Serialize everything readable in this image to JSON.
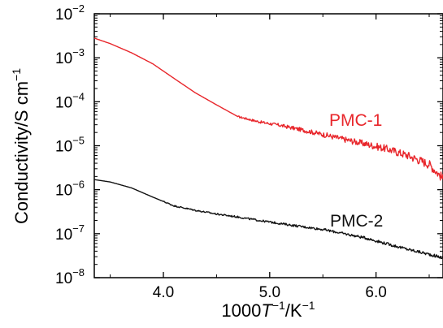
{
  "chart_data": {
    "type": "line",
    "xlabel": {
      "main": "1000",
      "italic": "T",
      "sup1": "−1",
      "rest": "/K",
      "sup2": "−1"
    },
    "ylabel": {
      "main": "Conductivity/S cm",
      "sup": "−1"
    },
    "xlim": [
      3.35,
      6.63
    ],
    "ylim_log10": [
      -8,
      -2
    ],
    "yscale": "log",
    "grid": false,
    "x_ticks": [
      4.0,
      5.0,
      6.0
    ],
    "x_tick_labels": [
      "4.0",
      "5.0",
      "6.0"
    ],
    "y_ticks_log10": [
      -2,
      -3,
      -4,
      -5,
      -6,
      -7,
      -8
    ],
    "y_tick_labels": [
      {
        "base": "10",
        "exp": "−2"
      },
      {
        "base": "10",
        "exp": "−3"
      },
      {
        "base": "10",
        "exp": "−4"
      },
      {
        "base": "10",
        "exp": "−5"
      },
      {
        "base": "10",
        "exp": "−6"
      },
      {
        "base": "10",
        "exp": "−7"
      },
      {
        "base": "10",
        "exp": "−8"
      }
    ],
    "series": [
      {
        "name": "PMC-1",
        "color": "#e8262b",
        "noisy_from_x": 4.7,
        "x": [
          3.35,
          3.5,
          3.7,
          3.9,
          4.1,
          4.3,
          4.5,
          4.7,
          4.9,
          5.1,
          5.3,
          5.5,
          5.7,
          5.9,
          6.1,
          6.3,
          6.5,
          6.63
        ],
        "y": [
          0.0028,
          0.0021,
          0.0013,
          0.00073,
          0.00034,
          0.00016,
          8.5e-05,
          4.6e-05,
          3.5e-05,
          2.9e-05,
          2.3e-05,
          1.8e-05,
          1.4e-05,
          1.1e-05,
          8.5e-06,
          6e-06,
          3.8e-06,
          1.8e-06
        ]
      },
      {
        "name": "PMC-2",
        "color": "#111111",
        "noisy_from_x": 4.0,
        "x": [
          3.35,
          3.5,
          3.7,
          3.9,
          4.1,
          4.3,
          4.5,
          4.7,
          4.9,
          5.1,
          5.3,
          5.5,
          5.7,
          5.9,
          6.1,
          6.3,
          6.5,
          6.63
        ],
        "y": [
          1.7e-06,
          1.5e-06,
          1.1e-06,
          6.8e-07,
          4.3e-07,
          3.4e-07,
          2.8e-07,
          2.4e-07,
          2e-07,
          1.7e-07,
          1.45e-07,
          1.25e-07,
          1e-07,
          8e-08,
          5.9e-08,
          4.4e-08,
          3.4e-08,
          2.8e-08
        ]
      }
    ]
  }
}
